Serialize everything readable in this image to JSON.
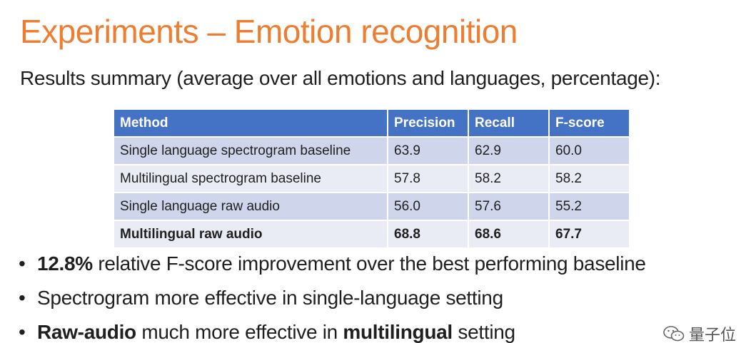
{
  "slide": {
    "title": "Experiments – Emotion recognition",
    "subtitle": "Results summary (average over all emotions and languages, percentage):"
  },
  "table": {
    "headers": [
      "Method",
      "Precision",
      "Recall",
      "F-score"
    ],
    "rows": [
      {
        "method": "Single language spectrogram baseline",
        "precision": "63.9",
        "recall": "62.9",
        "fscore": "60.0"
      },
      {
        "method": "Multilingual spectrogram baseline",
        "precision": "57.8",
        "recall": "58.2",
        "fscore": "58.2"
      },
      {
        "method": "Single language raw audio",
        "precision": "56.0",
        "recall": "57.6",
        "fscore": "55.2"
      },
      {
        "method": "Multilingual raw audio",
        "precision": "68.8",
        "recall": "68.6",
        "fscore": "67.7"
      }
    ],
    "header_color": "#4472C4",
    "row_color_odd": "#CFD5EA",
    "row_color_even": "#E9EBF5"
  },
  "bullets": [
    {
      "bold": "12.8%",
      "text": " relative F-score improvement over the best performing baseline"
    },
    {
      "text": "Spectrogram more effective in single-language setting"
    },
    {
      "bold_a": "Raw-audio",
      "text_a": " much more effective in ",
      "bold_b": "multilingual",
      "text_b": " setting"
    }
  ],
  "bullet_char": "•",
  "watermark": {
    "icon": "wechat-icon",
    "text": "量子位"
  },
  "colors": {
    "title": "#ED7D31"
  }
}
